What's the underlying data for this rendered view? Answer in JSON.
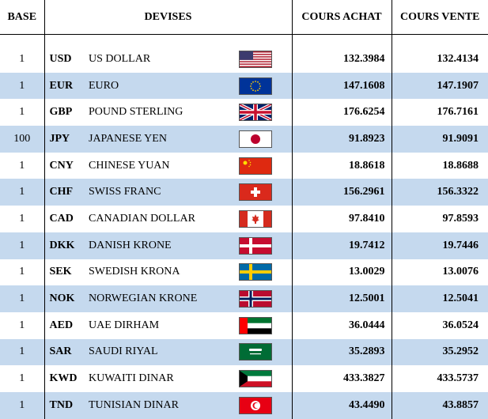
{
  "headers": {
    "base": "BASE",
    "devises": "DEVISES",
    "achat": "COURS ACHAT",
    "vente": "COURS VENTE"
  },
  "rows": [
    {
      "base": "1",
      "code": "USD",
      "name": "US DOLLAR",
      "flag": "us-flag-icon",
      "achat": "132.3984",
      "vente": "132.4134"
    },
    {
      "base": "1",
      "code": "EUR",
      "name": "EURO",
      "flag": "eu-flag-icon",
      "achat": "147.1608",
      "vente": "147.1907"
    },
    {
      "base": "1",
      "code": "GBP",
      "name": "POUND STERLING",
      "flag": "uk-flag-icon",
      "achat": "176.6254",
      "vente": "176.7161"
    },
    {
      "base": "100",
      "code": "JPY",
      "name": "JAPANESE YEN",
      "flag": "japan-flag-icon",
      "achat": "91.8923",
      "vente": "91.9091"
    },
    {
      "base": "1",
      "code": "CNY",
      "name": "CHINESE YUAN",
      "flag": "china-flag-icon",
      "achat": "18.8618",
      "vente": "18.8688"
    },
    {
      "base": "1",
      "code": "CHF",
      "name": "SWISS FRANC",
      "flag": "switzerland-flag-icon",
      "achat": "156.2961",
      "vente": "156.3322"
    },
    {
      "base": "1",
      "code": "CAD",
      "name": "CANADIAN DOLLAR",
      "flag": "canada-flag-icon",
      "achat": "97.8410",
      "vente": "97.8593"
    },
    {
      "base": "1",
      "code": "DKK",
      "name": "DANISH KRONE",
      "flag": "denmark-flag-icon",
      "achat": "19.7412",
      "vente": "19.7446"
    },
    {
      "base": "1",
      "code": "SEK",
      "name": "SWEDISH KRONA",
      "flag": "sweden-flag-icon",
      "achat": "13.0029",
      "vente": "13.0076"
    },
    {
      "base": "1",
      "code": "NOK",
      "name": "NORWEGIAN KRONE",
      "flag": "norway-flag-icon",
      "achat": "12.5001",
      "vente": "12.5041"
    },
    {
      "base": "1",
      "code": "AED",
      "name": "UAE DIRHAM",
      "flag": "uae-flag-icon",
      "achat": "36.0444",
      "vente": "36.0524"
    },
    {
      "base": "1",
      "code": "SAR",
      "name": "SAUDI RIYAL",
      "flag": "saudi-flag-icon",
      "achat": "35.2893",
      "vente": "35.2952"
    },
    {
      "base": "1",
      "code": "KWD",
      "name": "KUWAITI DINAR",
      "flag": "kuwait-flag-icon",
      "achat": "433.3827",
      "vente": "433.5737"
    },
    {
      "base": "1",
      "code": "TND",
      "name": "TUNISIAN DINAR",
      "flag": "tunisia-flag-icon",
      "achat": "43.4490",
      "vente": "43.8857"
    }
  ]
}
